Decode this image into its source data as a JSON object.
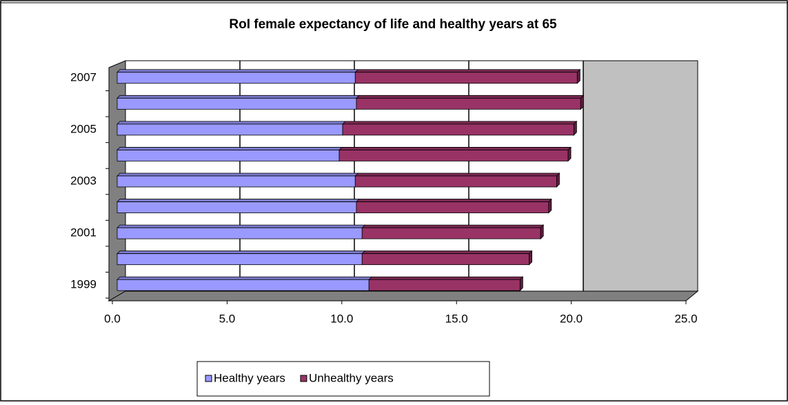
{
  "chart_data": {
    "type": "bar",
    "orientation": "horizontal",
    "stacked": true,
    "title": "RoI female expectancy of life and healthy years at 65",
    "categories": [
      "1999",
      null,
      "2001",
      null,
      "2003",
      null,
      "2005",
      null,
      "2007"
    ],
    "series": [
      {
        "name": "Healthy years",
        "color": "#9999ff",
        "values": [
          11.0,
          10.7,
          10.7,
          10.45,
          10.4,
          9.7,
          9.85,
          10.45,
          10.4
        ]
      },
      {
        "name": "Unhealthy years",
        "color": "#993366",
        "values": [
          6.6,
          7.3,
          7.8,
          8.4,
          8.8,
          10.0,
          10.1,
          9.8,
          9.7
        ]
      }
    ],
    "xlim": [
      0,
      25
    ],
    "xticks": [
      {
        "value": 0,
        "label": "0.0"
      },
      {
        "value": 5,
        "label": "5.0"
      },
      {
        "value": 10,
        "label": "10.0"
      },
      {
        "value": 15,
        "label": "15.0"
      },
      {
        "value": 20,
        "label": "20.0"
      },
      {
        "value": 25,
        "label": "25.0"
      }
    ],
    "grid": true,
    "legend": "bottom"
  }
}
